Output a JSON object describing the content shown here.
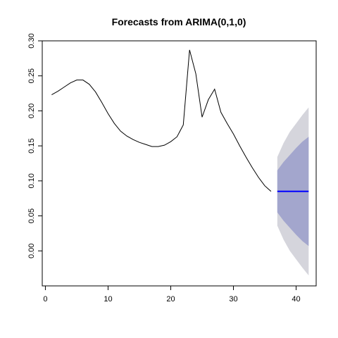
{
  "chart_data": {
    "type": "line",
    "title": "Forecasts from ARIMA(0,1,0)",
    "xlabel": "",
    "ylabel": "",
    "xlim": [
      -0.5,
      43.2
    ],
    "ylim": [
      -0.05,
      0.3
    ],
    "x_ticks": [
      0,
      10,
      20,
      30,
      40
    ],
    "y_ticks": [
      0.0,
      0.05,
      0.1,
      0.15,
      0.2,
      0.25,
      0.3
    ],
    "x_tick_labels": [
      "0",
      "10",
      "20",
      "30",
      "40"
    ],
    "y_tick_labels": [
      "0.00",
      "0.05",
      "0.10",
      "0.15",
      "0.20",
      "0.25",
      "0.30"
    ],
    "grid": false,
    "legend": "none",
    "colors": {
      "observed": "#000000",
      "forecast": "#0000ff",
      "band80": "#a3a6cd",
      "band95": "#d5d5dc"
    },
    "observed": {
      "x": [
        1,
        2,
        3,
        4,
        5,
        6,
        7,
        8,
        9,
        10,
        11,
        12,
        13,
        14,
        15,
        16,
        17,
        18,
        19,
        20,
        21,
        22,
        23,
        24,
        25,
        26,
        27,
        28,
        29,
        30,
        31,
        32,
        33,
        34,
        35,
        36
      ],
      "y": [
        0.223,
        0.228,
        0.234,
        0.24,
        0.244,
        0.244,
        0.238,
        0.227,
        0.212,
        0.196,
        0.182,
        0.171,
        0.164,
        0.159,
        0.155,
        0.152,
        0.149,
        0.149,
        0.151,
        0.156,
        0.163,
        0.18,
        0.287,
        0.253,
        0.191,
        0.216,
        0.231,
        0.198,
        0.182,
        0.167,
        0.15,
        0.134,
        0.119,
        0.105,
        0.093,
        0.085
      ]
    },
    "forecast": {
      "x": [
        37,
        38,
        39,
        40,
        41,
        42
      ],
      "mean": [
        0.085,
        0.085,
        0.085,
        0.085,
        0.085,
        0.085
      ],
      "lo80": [
        0.055,
        0.043,
        0.033,
        0.023,
        0.014,
        0.007
      ],
      "hi80": [
        0.115,
        0.127,
        0.137,
        0.147,
        0.156,
        0.163
      ],
      "lo95": [
        0.036,
        0.016,
        0.0,
        -0.012,
        -0.024,
        -0.035
      ],
      "hi95": [
        0.134,
        0.154,
        0.17,
        0.182,
        0.194,
        0.205
      ]
    }
  }
}
